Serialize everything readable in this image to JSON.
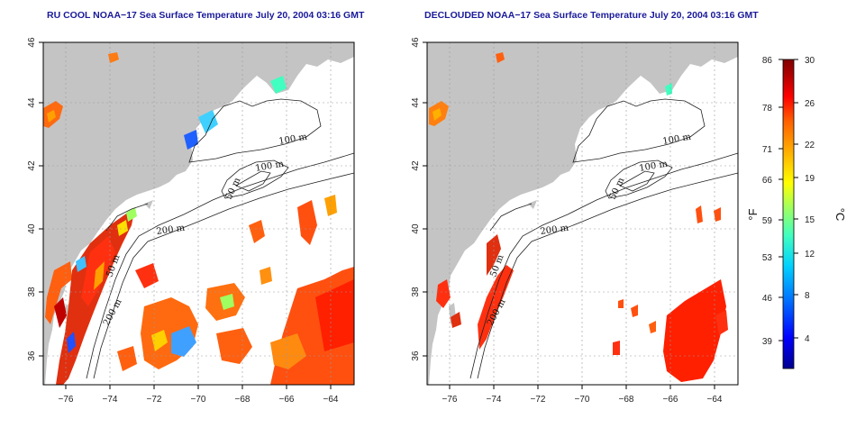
{
  "panels": [
    {
      "title": "RU COOL NOAA−17 Sea Surface Temperature July 20, 2004 03:16 GMT",
      "x_ticks": [
        "−76",
        "−74",
        "−72",
        "−70",
        "−68",
        "−66",
        "−64"
      ],
      "y_ticks": [
        "36",
        "38",
        "40",
        "42",
        "44",
        "46"
      ],
      "contour_labels": [
        "100 m",
        "100 m",
        "50 m",
        "200 m",
        "50 m",
        "200 m"
      ]
    },
    {
      "title": "DECLOUDED NOAA−17 Sea Surface Temperature July 20, 2004 03:16 GMT",
      "x_ticks": [
        "−76",
        "−74",
        "−72",
        "−70",
        "−68",
        "−66",
        "−64"
      ],
      "y_ticks": [
        "36",
        "38",
        "40",
        "42",
        "44",
        "46"
      ],
      "contour_labels": [
        "100 m",
        "100 m",
        "50 m",
        "200 m",
        "50 m",
        "200 m"
      ]
    }
  ],
  "colorbar": {
    "fahrenheit_ticks": [
      "86",
      "78",
      "71",
      "66",
      "59",
      "53",
      "46",
      "39"
    ],
    "celsius_ticks": [
      "30",
      "26",
      "22",
      "19",
      "15",
      "12",
      "8",
      "4"
    ],
    "fahrenheit_unit": "°F",
    "celsius_unit": "°C",
    "range_celsius": [
      0,
      30
    ],
    "colors": [
      "#00008f",
      "#0000ff",
      "#0070ff",
      "#00d0ff",
      "#40ffc0",
      "#a0ff60",
      "#ffff00",
      "#ffb000",
      "#ff6000",
      "#ff0000",
      "#b00000",
      "#800000"
    ]
  },
  "map_colors": {
    "land": "#c4c4c4",
    "ocean": "#ffffff",
    "grid": "#9a9a9a",
    "contour": "#222222"
  }
}
